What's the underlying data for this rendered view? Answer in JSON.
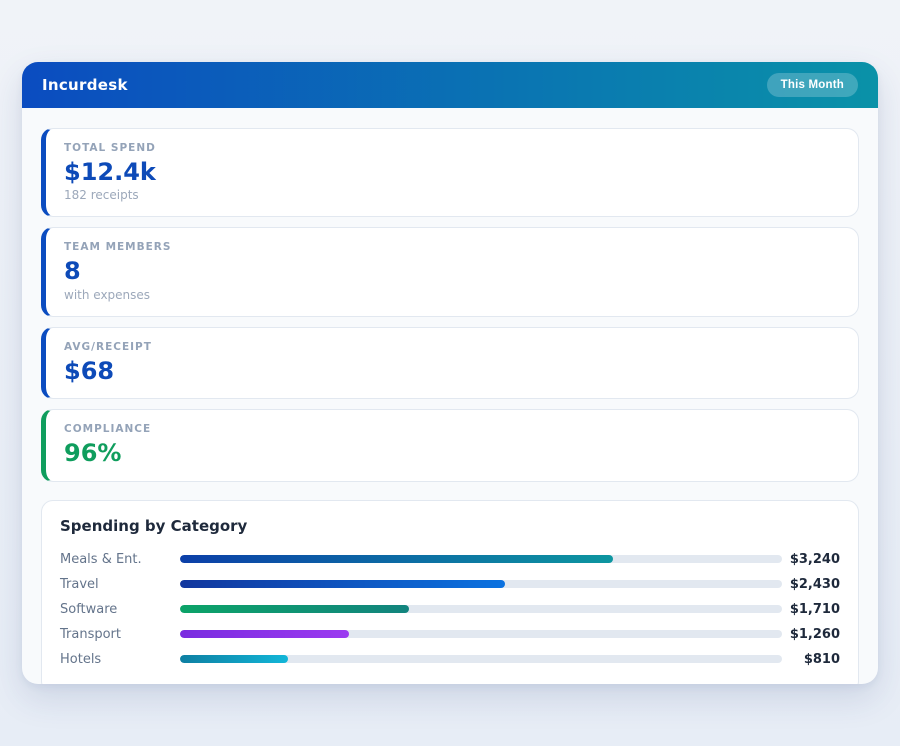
{
  "header": {
    "title": "Incurdesk",
    "badge": "This Month",
    "gradient_from": "#0b4cc0",
    "gradient_to": "#0a92a8"
  },
  "stats": [
    {
      "label": "TOTAL SPEND",
      "value": "$12.4k",
      "sub": "182 receipts",
      "accent": "#0b4cc0",
      "value_color": "#0d4ab8"
    },
    {
      "label": "TEAM MEMBERS",
      "value": "8",
      "sub": "with expenses",
      "accent": "#0b4cc0",
      "value_color": "#0d4ab8"
    },
    {
      "label": "AVG/RECEIPT",
      "value": "$68",
      "sub": "",
      "accent": "#0b4cc0",
      "value_color": "#0d4ab8"
    },
    {
      "label": "COMPLIANCE",
      "value": "96%",
      "sub": "",
      "accent": "#0f9d5d",
      "value_color": "#0f9d5d"
    }
  ],
  "chart_data": {
    "type": "bar",
    "orientation": "horizontal",
    "title": "Spending by Category",
    "categories": [
      "Meals & Ent.",
      "Travel",
      "Software",
      "Transport",
      "Hotels"
    ],
    "values": [
      3240,
      2430,
      1710,
      1260,
      810
    ],
    "value_labels": [
      "$3,240",
      "$2,430",
      "$1,710",
      "$1,260",
      "$810"
    ],
    "xlim": [
      0,
      4500
    ],
    "grid": false,
    "legend": false,
    "track_color": "#e2e8f0",
    "bar_gradients": [
      [
        "#0c3fa8",
        "#0d96a0"
      ],
      [
        "#12379e",
        "#0b72e0"
      ],
      [
        "#0ca368",
        "#12847e"
      ],
      [
        "#7a2ce0",
        "#9b3af0"
      ],
      [
        "#0e7fa2",
        "#12b6d8"
      ]
    ]
  }
}
